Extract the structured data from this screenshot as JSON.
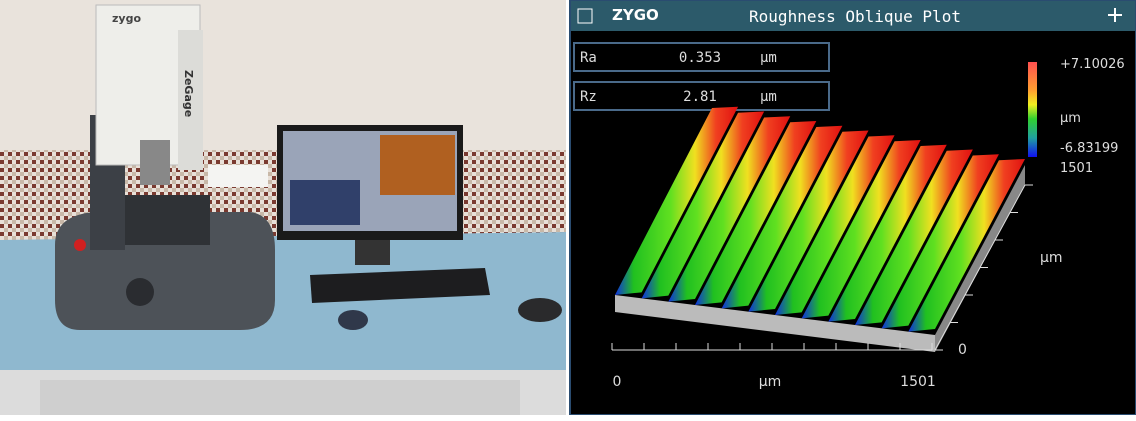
{
  "photo": {
    "brand": "zygo",
    "model": "ZeGage"
  },
  "window": {
    "logo": "ZYGO",
    "title": "Roughness Oblique Plot",
    "results": [
      {
        "label": "Ra",
        "value": "0.353",
        "unit": "µm"
      },
      {
        "label": "Rz",
        "value": "2.81",
        "unit": "µm"
      }
    ],
    "colorbar": {
      "max": "+7.10026",
      "unit": "µm",
      "min": "-6.83199",
      "extent": "1501"
    },
    "y_axis": {
      "start": "0",
      "unit": "µm"
    },
    "x_axis": {
      "start": "0",
      "unit": "µm",
      "end": "1501"
    }
  }
}
